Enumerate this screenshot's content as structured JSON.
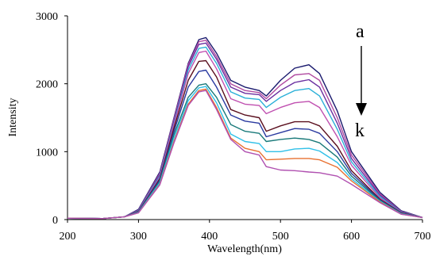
{
  "chart_data": {
    "type": "line",
    "xlabel": "Wavelength(nm)",
    "ylabel": "Intensity",
    "xlim": [
      200,
      700
    ],
    "ylim": [
      0,
      3000
    ],
    "xticks": [
      "200",
      "300",
      "400",
      "500",
      "600",
      "700"
    ],
    "yticks": [
      "0",
      "1000",
      "2000",
      "3000"
    ],
    "grid": false,
    "legend": "none",
    "annotations": {
      "start": "a",
      "end": "k",
      "arrow": "downward"
    },
    "x": [
      200,
      250,
      280,
      300,
      330,
      350,
      370,
      385,
      395,
      410,
      430,
      450,
      470,
      480,
      500,
      520,
      540,
      555,
      580,
      600,
      640,
      670,
      700
    ],
    "series": [
      {
        "color": "#1a1a6e",
        "values": [
          20,
          15,
          40,
          150,
          700,
          1500,
          2300,
          2650,
          2680,
          2450,
          2050,
          1950,
          1900,
          1820,
          2050,
          2230,
          2280,
          2150,
          1600,
          1000,
          400,
          130,
          30
        ]
      },
      {
        "color": "#b04aa0",
        "values": [
          20,
          15,
          40,
          140,
          680,
          1480,
          2280,
          2620,
          2640,
          2400,
          2000,
          1900,
          1870,
          1780,
          1980,
          2130,
          2150,
          2050,
          1500,
          950,
          380,
          120,
          30
        ]
      },
      {
        "color": "#6a2fa0",
        "values": [
          20,
          15,
          40,
          135,
          660,
          1450,
          2250,
          2580,
          2600,
          2360,
          1950,
          1860,
          1840,
          1740,
          1900,
          2020,
          2060,
          1950,
          1420,
          900,
          360,
          115,
          30
        ]
      },
      {
        "color": "#2ab0d8",
        "values": [
          20,
          15,
          40,
          130,
          640,
          1420,
          2200,
          2520,
          2540,
          2300,
          1880,
          1790,
          1770,
          1650,
          1800,
          1900,
          1930,
          1820,
          1330,
          850,
          340,
          110,
          30
        ]
      },
      {
        "color": "#c050b0",
        "values": [
          20,
          15,
          40,
          125,
          620,
          1400,
          2150,
          2460,
          2480,
          2220,
          1780,
          1700,
          1680,
          1560,
          1650,
          1720,
          1740,
          1650,
          1220,
          800,
          320,
          105,
          30
        ]
      },
      {
        "color": "#5a0f1e",
        "values": [
          20,
          15,
          40,
          120,
          600,
          1350,
          2050,
          2330,
          2340,
          2100,
          1620,
          1540,
          1500,
          1300,
          1380,
          1440,
          1440,
          1380,
          1080,
          720,
          300,
          100,
          30
        ]
      },
      {
        "color": "#2a3aa0",
        "values": [
          20,
          15,
          40,
          115,
          580,
          1300,
          1950,
          2180,
          2200,
          1950,
          1540,
          1450,
          1420,
          1220,
          1280,
          1340,
          1330,
          1270,
          1000,
          680,
          290,
          95,
          30
        ]
      },
      {
        "color": "#1a7a7a",
        "values": [
          20,
          15,
          40,
          110,
          560,
          1250,
          1800,
          1980,
          2000,
          1800,
          1400,
          1300,
          1270,
          1150,
          1180,
          1200,
          1180,
          1130,
          920,
          640,
          280,
          90,
          30
        ]
      },
      {
        "color": "#30c0e8",
        "values": [
          20,
          15,
          40,
          105,
          540,
          1200,
          1750,
          1940,
          1960,
          1720,
          1260,
          1150,
          1120,
          1000,
          1000,
          1040,
          1050,
          1010,
          840,
          600,
          270,
          85,
          30
        ]
      },
      {
        "color": "#e87030",
        "values": [
          20,
          15,
          40,
          100,
          520,
          1150,
          1700,
          1900,
          1920,
          1650,
          1200,
          1050,
          1000,
          880,
          890,
          900,
          900,
          880,
          770,
          570,
          260,
          80,
          30
        ]
      },
      {
        "color": "#b050b0",
        "values": [
          20,
          15,
          40,
          100,
          510,
          1130,
          1680,
          1880,
          1900,
          1620,
          1180,
          1000,
          950,
          780,
          730,
          720,
          700,
          690,
          640,
          520,
          250,
          78,
          30
        ]
      }
    ]
  }
}
